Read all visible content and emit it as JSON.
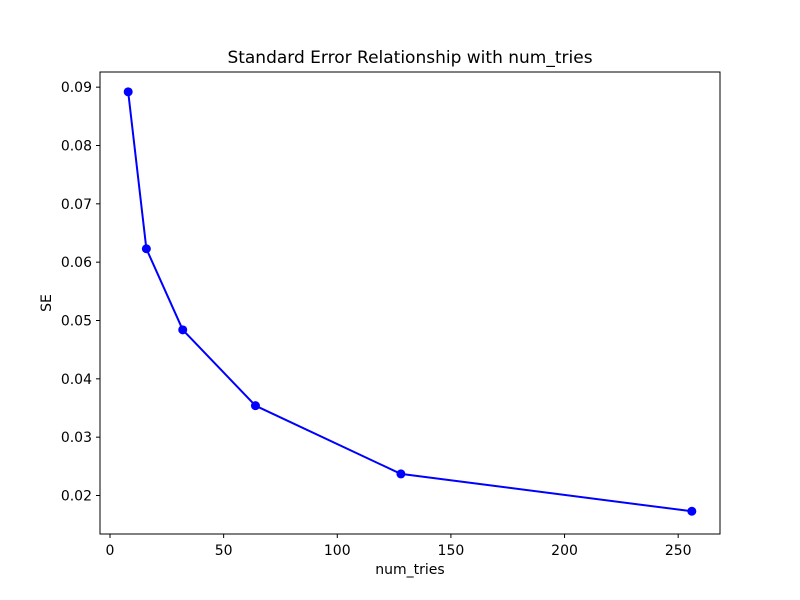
{
  "figure": {
    "background_color": "#ffffff",
    "spine_color": "#000000",
    "text_color": "#000000"
  },
  "chart_data": {
    "type": "line",
    "title": "Standard Error Relationship with num_tries",
    "xlabel": "num_tries",
    "ylabel": "SE",
    "x": [
      8,
      16,
      32,
      64,
      128,
      256
    ],
    "y": [
      0.0892,
      0.0623,
      0.0484,
      0.0354,
      0.0237,
      0.0173
    ],
    "line_color": "#0000ff",
    "marker": "o",
    "marker_color": "#0000ff",
    "xlim": [
      -4.4,
      268.4
    ],
    "ylim": [
      0.0134,
      0.0926
    ],
    "xticks": {
      "values": [
        0,
        50,
        100,
        150,
        200,
        250
      ],
      "labels": [
        "0",
        "50",
        "100",
        "150",
        "200",
        "250"
      ]
    },
    "yticks": {
      "values": [
        0.02,
        0.03,
        0.04,
        0.05,
        0.06,
        0.07,
        0.08,
        0.09
      ],
      "labels": [
        "0.02",
        "0.03",
        "0.04",
        "0.05",
        "0.06",
        "0.07",
        "0.08",
        "0.09"
      ]
    },
    "grid": false,
    "legend_position": "none"
  }
}
